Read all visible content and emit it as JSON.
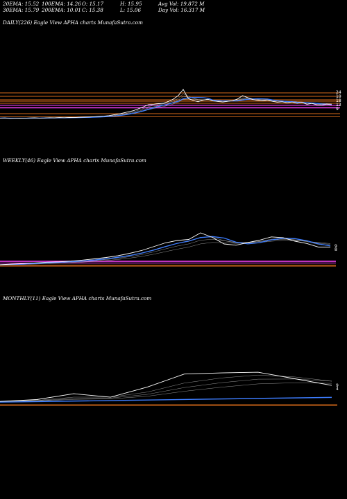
{
  "stats": [
    {
      "label": "20EMA: 15.52",
      "row": 0,
      "col": 0
    },
    {
      "label": "100EMA: 14.26",
      "row": 0,
      "col": 1
    },
    {
      "label": "O: 15.17",
      "row": 0,
      "col": 2
    },
    {
      "label": "H: 15.95",
      "row": 0,
      "col": 3
    },
    {
      "label": "Avg Vol: 19.872  M",
      "row": 0,
      "col": 4
    },
    {
      "label": "30EMA: 15.79",
      "row": 1,
      "col": 0
    },
    {
      "label": "200EMA: 10.01",
      "row": 1,
      "col": 1
    },
    {
      "label": "C: 15.38",
      "row": 1,
      "col": 2
    },
    {
      "label": "L: 15.06",
      "row": 1,
      "col": 3
    },
    {
      "label": "Day Vol: 16.317  M",
      "row": 1,
      "col": 4
    }
  ],
  "colors": {
    "background": "#000000",
    "price": "#ffffff",
    "ema_blue": "#3d7dff",
    "ema_magenta": "#ff44ff",
    "support_orange": "#d66a1a",
    "ema_grey": "#b0b0b0"
  },
  "chart_data": [
    {
      "type": "line",
      "title": "DAILY(226) Eagle   View  APHA charts MunafaSutra.com",
      "tick_labels": [
        "24",
        "19",
        "18",
        "13",
        "9"
      ],
      "price_series": [
        5.8,
        5.9,
        5.6,
        5.7,
        5.8,
        5.7,
        5.9,
        6.0,
        5.8,
        5.9,
        6.1,
        6.0,
        6.2,
        6.1,
        6.3,
        6.2,
        6.4,
        6.5,
        6.6,
        6.8,
        7.0,
        7.2,
        7.6,
        8.2,
        8.8,
        9.6,
        10.4,
        11.2,
        12.6,
        14.0,
        15.5,
        15.8,
        16.2,
        16.5,
        17.8,
        19.5,
        22.0,
        26.5,
        20.0,
        18.5,
        17.6,
        18.8,
        19.4,
        18.2,
        17.8,
        17.4,
        17.9,
        18.4,
        19.6,
        22.0,
        20.6,
        19.2,
        18.6,
        18.2,
        18.8,
        17.9,
        17.3,
        17.6,
        16.8,
        17.4,
        16.5,
        17.1,
        15.8,
        16.4,
        15.4,
        15.2,
        15.9,
        15.38
      ],
      "support_levels": [
        24.0,
        21.5,
        19.0,
        18.0,
        16.5,
        15.0,
        13.2,
        9.0,
        6.8
      ]
    },
    {
      "type": "line",
      "title": "WEEKLY(46) Eagle   View  APHA charts MunafaSutra.com",
      "tick_labels": [
        "9",
        "8"
      ],
      "price_series": [
        5.2,
        5.6,
        5.9,
        6.3,
        6.7,
        6.9,
        7.3,
        7.9,
        8.6,
        9.4,
        10.4,
        11.8,
        13.4,
        15.6,
        17.8,
        19.2,
        19.8,
        23.6,
        21.0,
        17.2,
        16.5,
        18.0,
        19.4,
        21.3,
        20.8,
        18.8,
        17.5,
        15.4,
        15.38
      ]
    },
    {
      "type": "line",
      "title": "MONTHLY(11) Eagle   View  APHA charts MunafaSutra.com",
      "tick_labels": [
        "9",
        "4"
      ],
      "price_series": [
        6.6,
        7.6,
        10.8,
        8.9,
        14.5,
        21.6,
        22.2,
        22.6,
        19.0,
        15.38
      ]
    }
  ]
}
